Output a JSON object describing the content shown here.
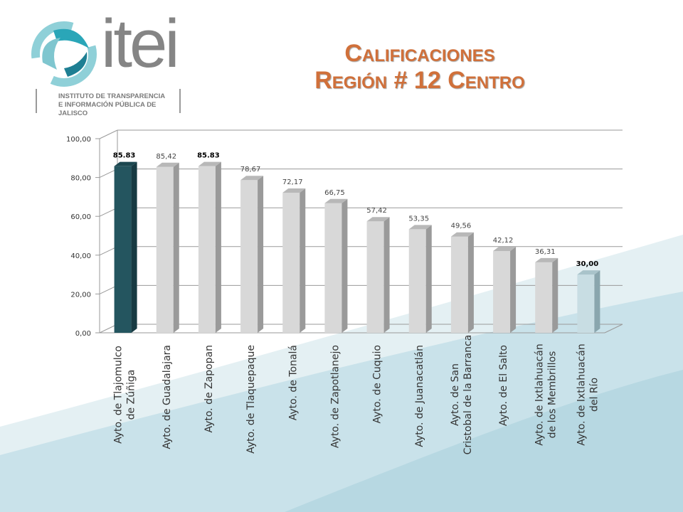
{
  "logo": {
    "name": "itei",
    "subtitle_line1": "INSTITUTO DE TRANSPARENCIA",
    "subtitle_line2": "E INFORMACIÓN PÚBLICA DE JALISCO"
  },
  "title": {
    "line1": "Calificaciones",
    "line2": "Región # 12 Centro"
  },
  "colors": {
    "highlight": "#24555f",
    "default": "#d8d8d8",
    "last": "#c8dde3",
    "title": "#d0703a"
  },
  "chart_data": {
    "type": "bar",
    "categories": [
      "Ayto. de Tlajomulco de Zúñiga",
      "Ayto. de Guadalajara",
      "Ayto. de Zapopan",
      "Ayto. de Tlaquepaque",
      "Ayto. de Tonalá",
      "Ayto. de Zapotlanejo",
      "Ayto. de Cuquio",
      "Ayto. de Juanacatlán",
      "Ayto. de San Cristobal de la Barranca",
      "Ayto. de El Salto",
      "Ayto. de Ixtlahuacán de los Membrillos",
      "Ayto. de Ixtlahuacán del Río"
    ],
    "category_lines": [
      [
        "Ayto. de Tlajomulco",
        "de Zúñiga"
      ],
      [
        "Ayto. de Guadalajara"
      ],
      [
        "Ayto. de Zapopan"
      ],
      [
        "Ayto. de Tlaquepaque"
      ],
      [
        "Ayto. de Tonalá"
      ],
      [
        "Ayto. de Zapotlanejo"
      ],
      [
        "Ayto. de Cuquio"
      ],
      [
        "Ayto. de Juanacatlán"
      ],
      [
        "Ayto. de San",
        "Cristobal de la Barranca"
      ],
      [
        "Ayto. de El Salto"
      ],
      [
        "Ayto. de Ixtlahuacán",
        "de los Membrillos"
      ],
      [
        "Ayto. de Ixtlahuacán",
        "del Río"
      ]
    ],
    "values": [
      85.83,
      85.42,
      85.83,
      78.67,
      72.17,
      66.75,
      57.42,
      53.35,
      49.56,
      42.12,
      36.31,
      30.0
    ],
    "data_labels": [
      "85.83",
      "85,42",
      "85.83",
      "78,67",
      "72,17",
      "66,75",
      "57,42",
      "53,35",
      "49,56",
      "42,12",
      "36,31",
      "30,00"
    ],
    "bold_labels": [
      0,
      2,
      11
    ],
    "ylim": [
      0,
      100
    ],
    "yticks": [
      "0,00",
      "20,00",
      "40,00",
      "60,00",
      "80,00",
      "100,00"
    ],
    "ytick_values": [
      0,
      20,
      40,
      60,
      80,
      100
    ],
    "grid": true,
    "legend": "none",
    "title": "Calificaciones Región # 12 Centro",
    "xlabel": "",
    "ylabel": ""
  }
}
